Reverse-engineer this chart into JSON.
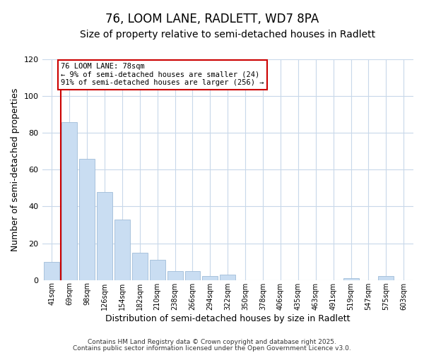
{
  "title": "76, LOOM LANE, RADLETT, WD7 8PA",
  "subtitle": "Size of property relative to semi-detached houses in Radlett",
  "xlabel": "Distribution of semi-detached houses by size in Radlett",
  "ylabel": "Number of semi-detached properties",
  "categories": [
    "41sqm",
    "69sqm",
    "98sqm",
    "126sqm",
    "154sqm",
    "182sqm",
    "210sqm",
    "238sqm",
    "266sqm",
    "294sqm",
    "322sqm",
    "350sqm",
    "378sqm",
    "406sqm",
    "435sqm",
    "463sqm",
    "491sqm",
    "519sqm",
    "547sqm",
    "575sqm",
    "603sqm"
  ],
  "values": [
    10,
    86,
    66,
    48,
    33,
    15,
    11,
    5,
    5,
    2,
    3,
    0,
    0,
    0,
    0,
    0,
    0,
    1,
    0,
    2,
    0
  ],
  "bar_color": "#c9ddf2",
  "bar_edge_color": "#a0bcd8",
  "ylim": [
    0,
    120
  ],
  "yticks": [
    0,
    20,
    40,
    60,
    80,
    100,
    120
  ],
  "vline_x": 0.5,
  "vline_color": "#cc0000",
  "annotation_title": "76 LOOM LANE: 78sqm",
  "annotation_line1": "← 9% of semi-detached houses are smaller (24)",
  "annotation_line2": "91% of semi-detached houses are larger (256) →",
  "annotation_box_color": "#ffffff",
  "annotation_box_edge": "#cc0000",
  "footnote1": "Contains HM Land Registry data © Crown copyright and database right 2025.",
  "footnote2": "Contains public sector information licensed under the Open Government Licence v3.0.",
  "background_color": "#ffffff",
  "grid_color": "#c8d8ea",
  "title_fontsize": 12,
  "subtitle_fontsize": 10,
  "bar_width": 0.88
}
